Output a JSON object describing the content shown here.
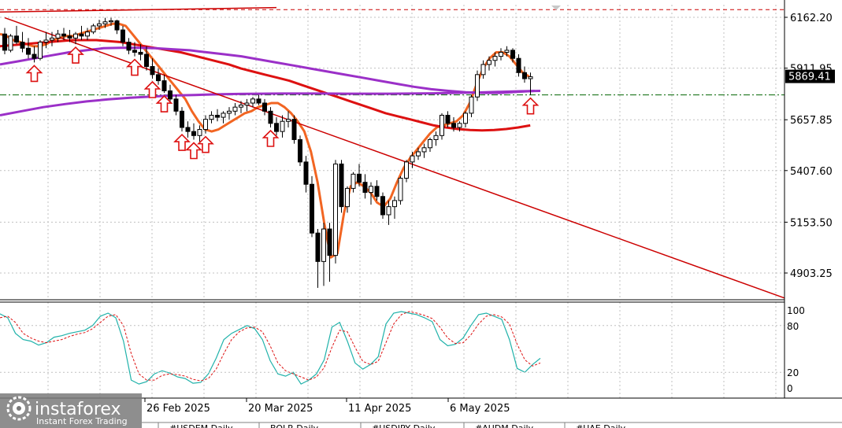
{
  "chart_data": [
    {
      "type": "candlestick",
      "title": "",
      "y_ticks": [
        6162.2,
        5911.95,
        5657.85,
        5407.6,
        5153.5,
        4903.25
      ],
      "y_tick_labels": [
        "6162.20",
        "5911.95",
        "5657.85",
        "5407.60",
        "5153.50",
        "4903.25"
      ],
      "current_price": 5869.41,
      "current_price_label": "5869.41",
      "x_tick_labels": [
        "26 Feb 2025",
        "20 Mar 2025",
        "11 Apr 2025",
        "6 May 2025"
      ],
      "ylim": [
        4780,
        6210
      ],
      "candles": [
        [
          6080,
          6110,
          5980,
          6000
        ],
        [
          6000,
          6080,
          5990,
          6070
        ],
        [
          6070,
          6120,
          6030,
          6040
        ],
        [
          6040,
          6090,
          5990,
          6010
        ],
        [
          6010,
          6060,
          5960,
          5980
        ],
        [
          5980,
          6020,
          5940,
          5960
        ],
        [
          5960,
          6050,
          5950,
          6040
        ],
        [
          6040,
          6090,
          6010,
          6050
        ],
        [
          6050,
          6090,
          6020,
          6060
        ],
        [
          6060,
          6100,
          6040,
          6080
        ],
        [
          6080,
          6110,
          6050,
          6070
        ],
        [
          6070,
          6100,
          6040,
          6060
        ],
        [
          6060,
          6090,
          6030,
          6080
        ],
        [
          6080,
          6120,
          6050,
          6070
        ],
        [
          6070,
          6110,
          6050,
          6090
        ],
        [
          6090,
          6130,
          6080,
          6120
        ],
        [
          6120,
          6150,
          6100,
          6130
        ],
        [
          6130,
          6160,
          6110,
          6140
        ],
        [
          6140,
          6160,
          6120,
          6145
        ],
        [
          6145,
          6150,
          6080,
          6100
        ],
        [
          6100,
          6120,
          6020,
          6040
        ],
        [
          6040,
          6060,
          5980,
          6000
        ],
        [
          6000,
          6040,
          5970,
          5990
        ],
        [
          5990,
          6030,
          5950,
          5980
        ],
        [
          5980,
          6020,
          5900,
          5920
        ],
        [
          5920,
          5960,
          5860,
          5880
        ],
        [
          5880,
          5910,
          5830,
          5850
        ],
        [
          5850,
          5880,
          5790,
          5800
        ],
        [
          5800,
          5830,
          5740,
          5760
        ],
        [
          5760,
          5780,
          5680,
          5700
        ],
        [
          5700,
          5720,
          5600,
          5620
        ],
        [
          5620,
          5650,
          5570,
          5600
        ],
        [
          5600,
          5640,
          5560,
          5580
        ],
        [
          5580,
          5630,
          5550,
          5610
        ],
        [
          5610,
          5680,
          5590,
          5660
        ],
        [
          5660,
          5700,
          5640,
          5680
        ],
        [
          5680,
          5710,
          5650,
          5670
        ],
        [
          5670,
          5700,
          5640,
          5690
        ],
        [
          5690,
          5720,
          5660,
          5700
        ],
        [
          5700,
          5740,
          5680,
          5720
        ],
        [
          5720,
          5750,
          5690,
          5730
        ],
        [
          5730,
          5760,
          5700,
          5740
        ],
        [
          5740,
          5770,
          5720,
          5760
        ],
        [
          5760,
          5780,
          5730,
          5740
        ],
        [
          5740,
          5760,
          5680,
          5700
        ],
        [
          5700,
          5720,
          5620,
          5640
        ],
        [
          5640,
          5670,
          5580,
          5600
        ],
        [
          5600,
          5680,
          5570,
          5650
        ],
        [
          5650,
          5700,
          5620,
          5660
        ],
        [
          5660,
          5680,
          5540,
          5560
        ],
        [
          5560,
          5580,
          5430,
          5450
        ],
        [
          5450,
          5480,
          5300,
          5340
        ],
        [
          5340,
          5380,
          5080,
          5100
        ],
        [
          5100,
          5120,
          4830,
          4960
        ],
        [
          4960,
          5150,
          4840,
          5120
        ],
        [
          5120,
          5150,
          4860,
          4990
        ],
        [
          4990,
          5460,
          4950,
          5440
        ],
        [
          5440,
          5460,
          5200,
          5230
        ],
        [
          5230,
          5330,
          5200,
          5320
        ],
        [
          5320,
          5400,
          5300,
          5390
        ],
        [
          5390,
          5440,
          5330,
          5350
        ],
        [
          5350,
          5390,
          5270,
          5300
        ],
        [
          5300,
          5350,
          5240,
          5330
        ],
        [
          5330,
          5360,
          5260,
          5280
        ],
        [
          5280,
          5300,
          5170,
          5190
        ],
        [
          5190,
          5260,
          5140,
          5230
        ],
        [
          5230,
          5280,
          5170,
          5260
        ],
        [
          5260,
          5380,
          5240,
          5370
        ],
        [
          5370,
          5460,
          5350,
          5450
        ],
        [
          5450,
          5500,
          5420,
          5480
        ],
        [
          5480,
          5520,
          5460,
          5500
        ],
        [
          5500,
          5540,
          5470,
          5520
        ],
        [
          5520,
          5570,
          5500,
          5560
        ],
        [
          5560,
          5600,
          5530,
          5580
        ],
        [
          5580,
          5690,
          5560,
          5680
        ],
        [
          5680,
          5700,
          5620,
          5640
        ],
        [
          5640,
          5670,
          5600,
          5620
        ],
        [
          5620,
          5650,
          5600,
          5640
        ],
        [
          5640,
          5700,
          5620,
          5690
        ],
        [
          5690,
          5780,
          5670,
          5770
        ],
        [
          5770,
          5900,
          5750,
          5880
        ],
        [
          5880,
          5950,
          5860,
          5930
        ],
        [
          5930,
          5970,
          5900,
          5950
        ],
        [
          5950,
          5990,
          5920,
          5970
        ],
        [
          5970,
          6010,
          5950,
          5990
        ],
        [
          5990,
          6020,
          5970,
          6000
        ],
        [
          6000,
          6010,
          5940,
          5960
        ],
        [
          5960,
          5980,
          5870,
          5890
        ],
        [
          5890,
          5920,
          5840,
          5860
        ],
        [
          5860,
          5890,
          5780,
          5869.41
        ]
      ],
      "trendlines": [
        {
          "name": "down-trendline",
          "color": "#cc0000",
          "from": [
            0,
            6160
          ],
          "to": [
            143,
            4780
          ]
        },
        {
          "name": "top-channel-line",
          "color": "#cc0000",
          "from": [
            -8,
            6185
          ],
          "to": [
            46,
            6210
          ]
        }
      ],
      "hlines": [
        {
          "name": "resistance-dashed",
          "value": 6200,
          "color": "#cc0000",
          "style": "dashed"
        },
        {
          "name": "support-dashdot",
          "value": 5780,
          "color": "#006400",
          "style": "dashdot"
        }
      ],
      "ma_series": [
        {
          "name": "ma-fast",
          "color": "#f26522",
          "values": [
            6080,
            6070,
            6050,
            6040,
            6030,
            6020,
            6020,
            6030,
            6050,
            6060,
            6070,
            6070,
            6080,
            6090,
            6100,
            6110,
            6120,
            6130,
            6130,
            6120,
            6080,
            6040,
            6000,
            5960,
            5920,
            5880,
            5840,
            5800,
            5760,
            5700,
            5650,
            5610,
            5600,
            5610,
            5630,
            5650,
            5670,
            5690,
            5700,
            5720,
            5730,
            5740,
            5740,
            5720,
            5690,
            5650,
            5600,
            5500,
            5350,
            5150,
            4980,
            5000,
            5200,
            5330,
            5350,
            5330,
            5300,
            5250,
            5230,
            5270,
            5350,
            5420,
            5470,
            5510,
            5550,
            5590,
            5620,
            5630,
            5640,
            5650,
            5680,
            5740,
            5830,
            5910,
            5960,
            5990,
            5990,
            5970,
            5930,
            5890,
            5870
          ]
        },
        {
          "name": "ma-mid",
          "color": "#dd1111",
          "values": [
            6020,
            6025,
            6030,
            6035,
            6040,
            6045,
            6050,
            6050,
            6050,
            6045,
            6040,
            6030,
            6020,
            6010,
            6000,
            5990,
            5975,
            5960,
            5945,
            5930,
            5910,
            5895,
            5880,
            5865,
            5850,
            5830,
            5810,
            5790,
            5770,
            5750,
            5730,
            5710,
            5690,
            5675,
            5660,
            5645,
            5630,
            5620,
            5612,
            5607,
            5605,
            5607,
            5612,
            5620,
            5630
          ]
        },
        {
          "name": "ma-slow",
          "color": "#9b30c8",
          "values": [
            5930,
            5945,
            5960,
            5975,
            5990,
            6000,
            6010,
            6012,
            6012,
            6010,
            6005,
            6000,
            5990,
            5980,
            5970,
            5955,
            5940,
            5925,
            5910,
            5895,
            5880,
            5865,
            5850,
            5835,
            5820,
            5808,
            5800,
            5793,
            5790,
            5790,
            5795,
            5800
          ]
        },
        {
          "name": "ma-long",
          "color": "#9b30c8",
          "values": [
            5680,
            5700,
            5720,
            5735,
            5748,
            5758,
            5766,
            5772,
            5777,
            5780,
            5783,
            5785,
            5786,
            5787,
            5787,
            5787,
            5786,
            5786,
            5786,
            5787,
            5788,
            5790,
            5792,
            5795,
            5798,
            5800
          ]
        }
      ],
      "arrow_bars": [
        5,
        12,
        22,
        25,
        27,
        30,
        32,
        34,
        45,
        89
      ],
      "oscillator": {
        "labels": [
          "100",
          "80",
          "20",
          "0"
        ],
        "levels": [
          100,
          80,
          20,
          0
        ],
        "k": [
          95,
          90,
          70,
          62,
          60,
          55,
          58,
          65,
          67,
          70,
          72,
          74,
          80,
          92,
          96,
          90,
          60,
          10,
          5,
          8,
          18,
          22,
          19,
          14,
          12,
          6,
          7,
          18,
          38,
          62,
          70,
          75,
          80,
          76,
          62,
          35,
          18,
          15,
          20,
          5,
          10,
          18,
          36,
          78,
          84,
          60,
          32,
          24,
          30,
          40,
          82,
          96,
          98,
          96,
          94,
          90,
          85,
          62,
          54,
          56,
          64,
          80,
          94,
          96,
          92,
          88,
          62,
          25,
          20,
          30,
          38
        ],
        "d": [
          90,
          92,
          84,
          70,
          64,
          60,
          58,
          60,
          62,
          66,
          69,
          71,
          76,
          84,
          92,
          94,
          80,
          44,
          18,
          10,
          10,
          16,
          18,
          17,
          15,
          11,
          9,
          12,
          24,
          44,
          62,
          72,
          77,
          78,
          72,
          54,
          32,
          22,
          18,
          14,
          10,
          14,
          26,
          52,
          74,
          72,
          52,
          34,
          30,
          34,
          58,
          82,
          94,
          98,
          96,
          93,
          89,
          78,
          64,
          57,
          58,
          68,
          82,
          92,
          94,
          91,
          82,
          56,
          36,
          28,
          32
        ]
      }
    }
  ],
  "bottom_tabs": [
    "#USDEM,Daily",
    "BOLR,Daily",
    "#USDJPY,Daily",
    "#AUDM,Daily",
    "#UAE,Daily"
  ],
  "logo": {
    "brand": "instaforex",
    "tagline": "Instant Forex Trading"
  },
  "colors": {
    "candle_up": "#ffffff",
    "candle_down": "#000000",
    "grid": "#c0c0c0",
    "price_tag_bg": "#000000",
    "arrow": "#dd1111"
  }
}
